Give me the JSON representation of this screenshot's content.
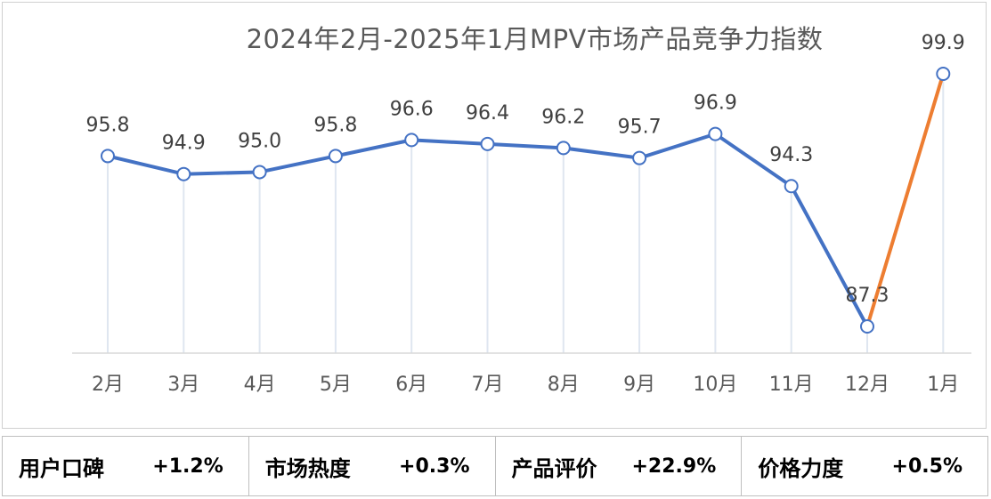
{
  "chart_data": {
    "type": "line",
    "title": "2024年2月-2025年1月MPV市场产品竞争力指数",
    "categories": [
      "2月",
      "3月",
      "4月",
      "5月",
      "6月",
      "7月",
      "8月",
      "9月",
      "10月",
      "11月",
      "12月",
      "1月"
    ],
    "series": [
      {
        "values": [
          95.8,
          94.9,
          95.0,
          95.8,
          96.6,
          96.4,
          96.2,
          95.7,
          96.9,
          94.3,
          87.3,
          99.9
        ]
      }
    ],
    "value_labels": [
      "95.8",
      "94.9",
      "95.0",
      "95.8",
      "96.6",
      "96.4",
      "96.2",
      "95.7",
      "96.9",
      "94.3",
      "87.3",
      "99.9"
    ],
    "highlight_last_segment": true,
    "colors": {
      "line": "#4472c4",
      "highlight": "#ed7d31",
      "marker_fill": "#ffffff",
      "drop_line": "#dfe6f0",
      "axis": "#d9d9d9"
    },
    "grid": false,
    "legend": "none"
  },
  "metrics": [
    {
      "label": "用户口碑",
      "value": "+1.2%"
    },
    {
      "label": "市场热度",
      "value": "+0.3%"
    },
    {
      "label": "产品评价",
      "value": "+22.9%"
    },
    {
      "label": "价格力度",
      "value": "+0.5%"
    }
  ]
}
